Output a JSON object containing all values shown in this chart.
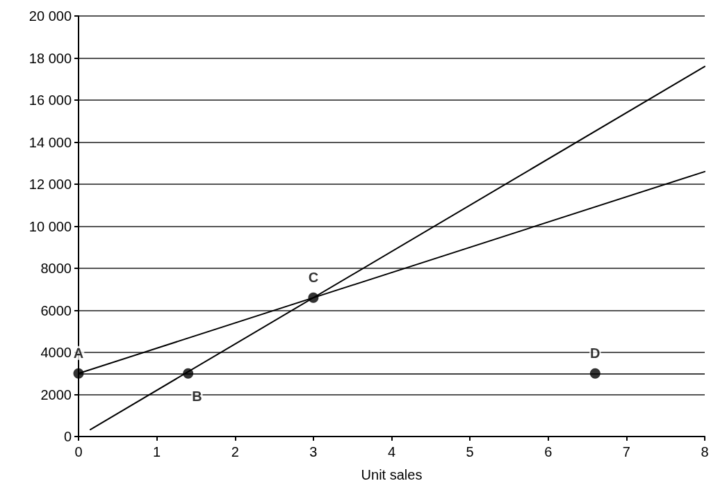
{
  "chart_data": {
    "type": "line",
    "xlabel": "Unit sales",
    "xlim": [
      0,
      8
    ],
    "xticks": [
      0,
      1,
      2,
      3,
      4,
      5,
      6,
      7,
      8
    ],
    "ylim": [
      0,
      20000
    ],
    "yticks": [
      0,
      2000,
      4000,
      6000,
      8000,
      {
        "value": 10000,
        "label": "10 000"
      },
      {
        "value": 12000,
        "label": "12 000"
      },
      {
        "value": 14000,
        "label": "14 000"
      },
      {
        "value": 16000,
        "label": "16 000"
      },
      {
        "value": 18000,
        "label": "18 000"
      },
      {
        "value": 20000,
        "label": "20 000"
      }
    ],
    "grid": "y",
    "marker": "none",
    "line_style": "solid",
    "ref_lines": [
      {
        "axis": "y",
        "value": 3000,
        "color": "#000000"
      }
    ],
    "series": [
      {
        "color": "#000000",
        "x": [
          0.15,
          8
        ],
        "values": [
          330,
          17600
        ]
      },
      {
        "color": "#000000",
        "x": [
          0,
          8
        ],
        "values": [
          3000,
          12600
        ]
      },
      {
        "type": "scatter",
        "color": "#000000",
        "marker": "circle",
        "x": [
          0,
          1.4,
          3,
          6.6
        ],
        "values": [
          3000,
          3000,
          6600,
          3000
        ],
        "value_labels": [
          "A",
          "B",
          "C",
          "D"
        ]
      }
    ]
  }
}
